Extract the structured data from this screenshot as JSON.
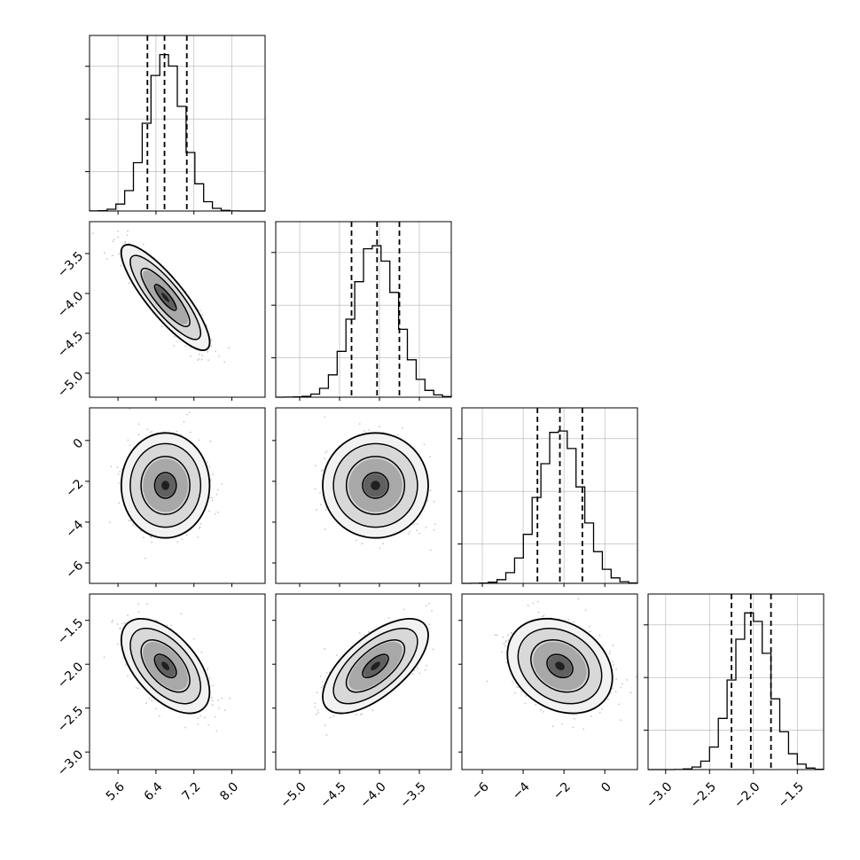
{
  "chart_data": {
    "type": "corner",
    "parameters": 4,
    "panel_style": {
      "frame_color": "#000000",
      "grid_color": "#b0b0b0",
      "hist_color": "#000000",
      "scatter_color": "#9a9a9a"
    },
    "axes": [
      {
        "ticks": [
          "5.6",
          "6.4",
          "7.2",
          "8.0"
        ],
        "range": [
          5.0,
          8.7
        ],
        "values": [
          5.6,
          6.4,
          7.2,
          8.0
        ]
      },
      {
        "ticks": [
          "−5.0",
          "−4.5",
          "−4.0",
          "−3.5"
        ],
        "range": [
          -5.3,
          -3.1
        ],
        "values": [
          -5.0,
          -4.5,
          -4.0,
          -3.5
        ]
      },
      {
        "ticks": [
          "−6",
          "−4",
          "−2",
          "0"
        ],
        "range": [
          -7.0,
          1.6
        ],
        "values": [
          -6,
          -4,
          -2,
          0
        ]
      },
      {
        "ticks": [
          "−3.0",
          "−2.5",
          "−2.0",
          "−1.5"
        ],
        "range": [
          -3.2,
          -1.2
        ],
        "values": [
          -3.0,
          -2.5,
          -2.0,
          -1.5
        ]
      }
    ],
    "y_axis_labels": [
      {
        "row": 1,
        "ticks": [
          "−3.5",
          "−4.0",
          "−4.5",
          "−5.0"
        ]
      },
      {
        "row": 2,
        "ticks": [
          "0",
          "−2",
          "−4",
          "−6"
        ]
      },
      {
        "row": 3,
        "ticks": [
          "−1.5",
          "−2.0",
          "−2.5",
          "−3.0"
        ]
      }
    ],
    "marginals": [
      {
        "param": 0,
        "mean": 6.6,
        "sd": 0.38,
        "quantiles": [
          6.22,
          6.58,
          7.05
        ]
      },
      {
        "param": 1,
        "mean": -4.05,
        "sd": 0.27,
        "quantiles": [
          -4.35,
          -4.03,
          -3.75
        ]
      },
      {
        "param": 2,
        "mean": -2.2,
        "sd": 1.05,
        "quantiles": [
          -3.3,
          -2.2,
          -1.1
        ]
      },
      {
        "param": 3,
        "mean": -2.02,
        "sd": 0.22,
        "quantiles": [
          -2.25,
          -2.03,
          -1.8
        ]
      }
    ],
    "correlations": [
      {
        "x": 0,
        "y": 1,
        "rho": -0.85
      },
      {
        "x": 0,
        "y": 2,
        "rho": 0.0
      },
      {
        "x": 1,
        "y": 2,
        "rho": 0.0
      },
      {
        "x": 0,
        "y": 3,
        "rho": -0.55
      },
      {
        "x": 1,
        "y": 3,
        "rho": 0.65
      },
      {
        "x": 2,
        "y": 3,
        "rho": -0.25
      }
    ],
    "hist_bins": 20,
    "contour_levels": 4,
    "grid": true
  }
}
